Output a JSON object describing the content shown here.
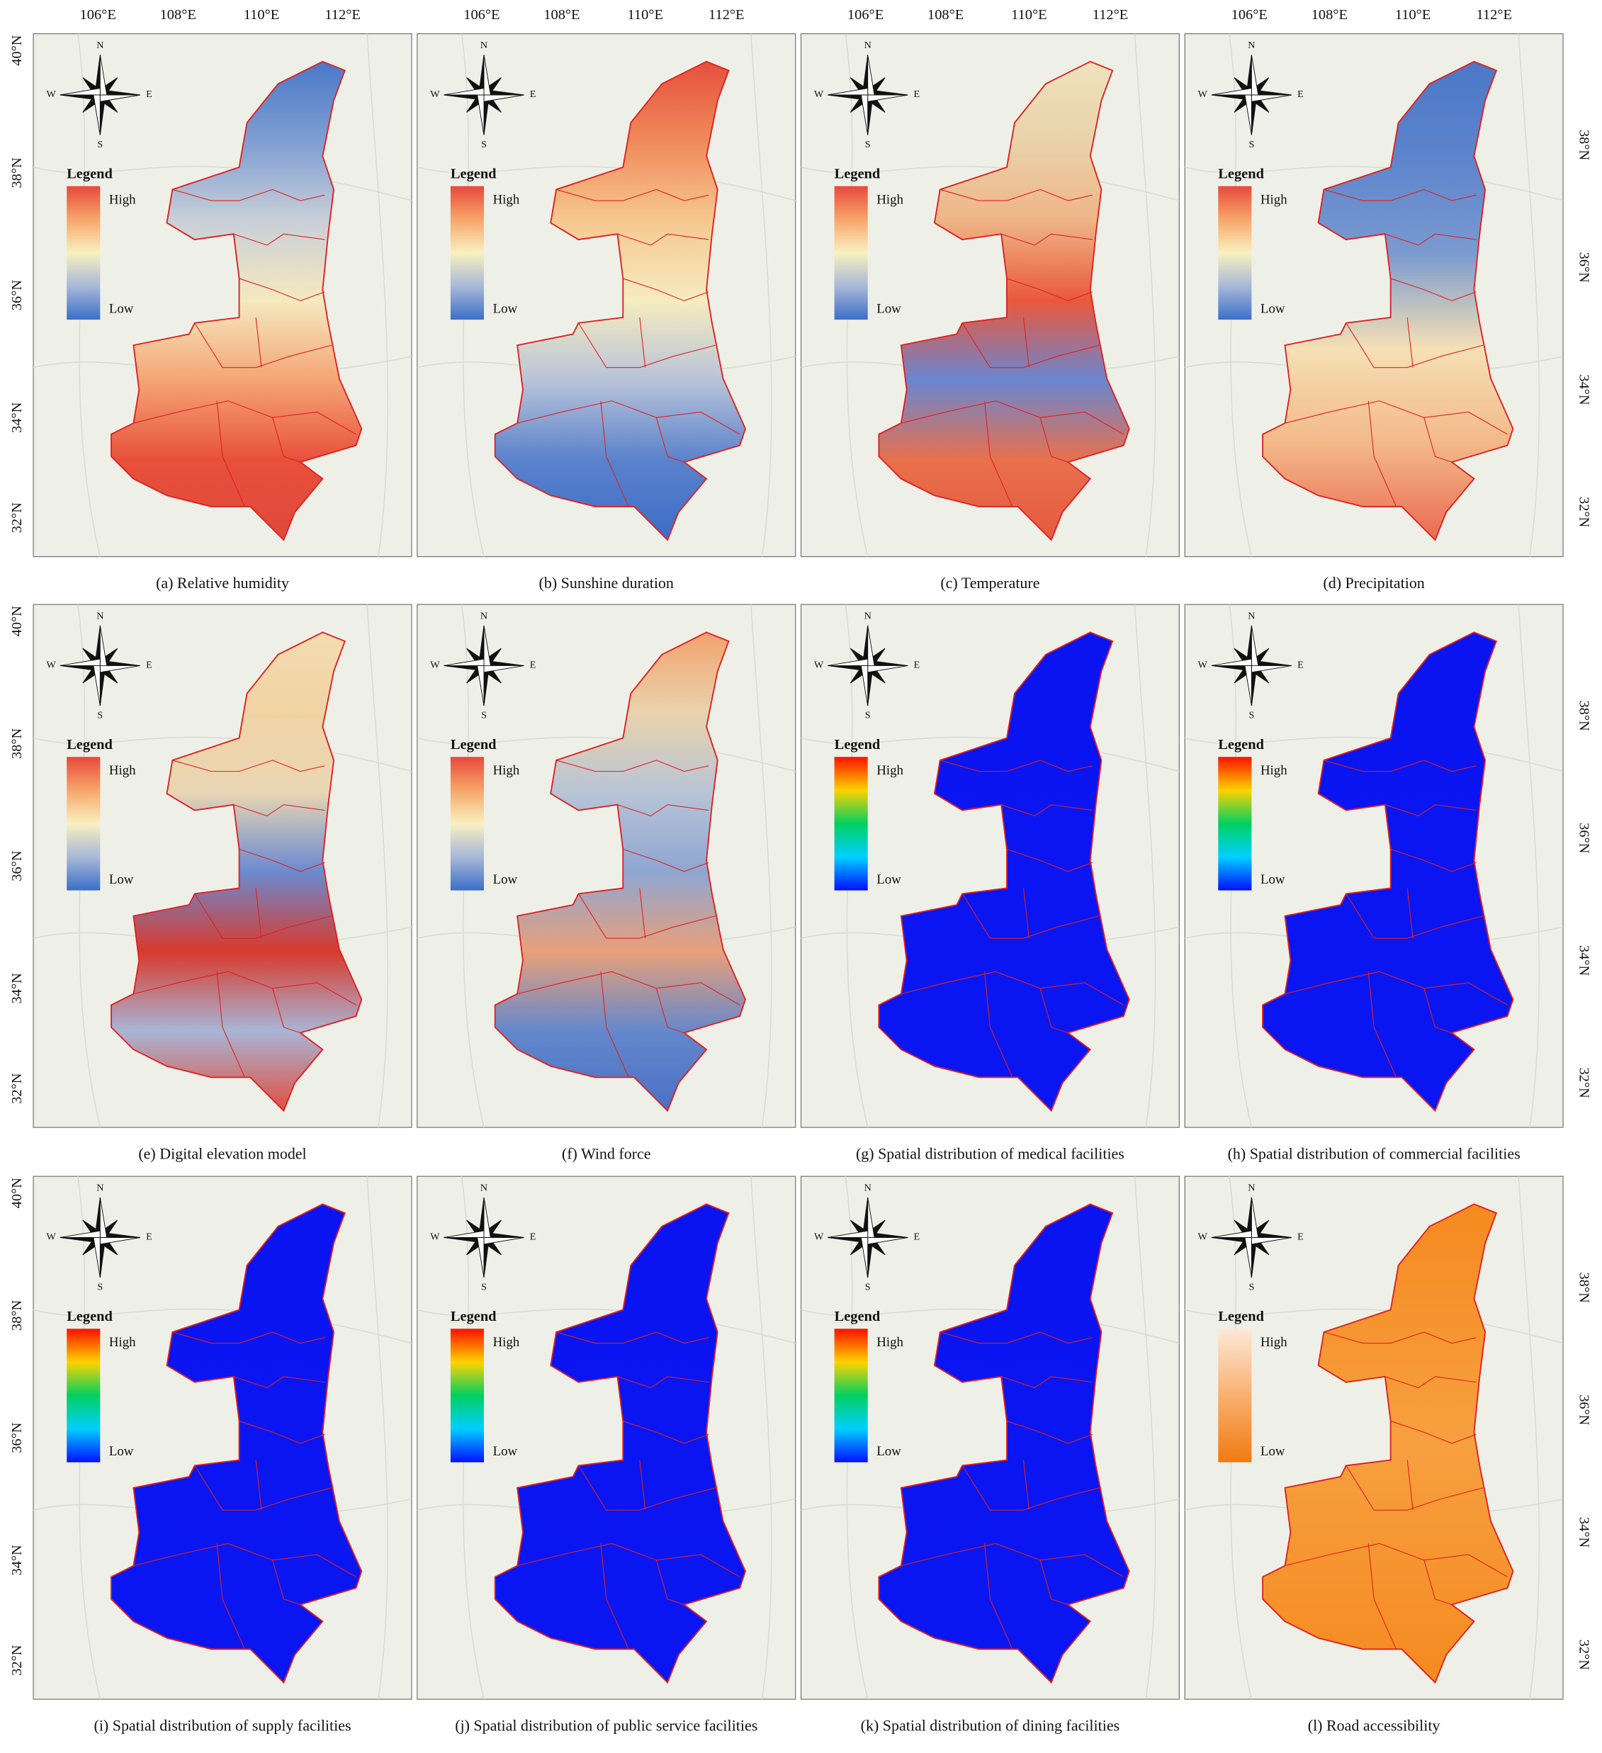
{
  "top_axis_labels": [
    "106°E",
    "108°E",
    "110°E",
    "112°E"
  ],
  "left_axis_labels": [
    "40°N",
    "38°N",
    "36°N",
    "34°N",
    "32°N"
  ],
  "right_axis_labels": [
    "38°N",
    "36°N",
    "34°N",
    "32°N"
  ],
  "compass": {
    "n": "N",
    "e": "E",
    "s": "S",
    "w": "W"
  },
  "legend": {
    "title": "Legend",
    "high": "High",
    "low": "Low"
  },
  "panels": [
    {
      "caption": "(a) Relative humidity",
      "legend_colors": [
        "#e8483b",
        "#f7a66a",
        "#f8f1bf",
        "#a8b8d8",
        "#3b6fc8"
      ],
      "map_colors": [
        "#4a78c8",
        "#7f9ed2",
        "#c8cfd8",
        "#f5e9be",
        "#f4a575",
        "#e8503c",
        "#e0483a"
      ]
    },
    {
      "caption": "(b) Sunshine duration",
      "legend_colors": [
        "#e8483b",
        "#f7a66a",
        "#f8f1bf",
        "#a8b8d8",
        "#3b6fc8"
      ],
      "map_colors": [
        "#e6503c",
        "#f08a5a",
        "#f6c890",
        "#f5ecc0",
        "#b8c3d8",
        "#5a82cc",
        "#3e6cc6"
      ]
    },
    {
      "caption": "(c) Temperature",
      "legend_colors": [
        "#e8483b",
        "#f7a66a",
        "#f8f1bf",
        "#a8b8d8",
        "#3b6fc8"
      ],
      "map_colors": [
        "#eee2bc",
        "#e9d2aa",
        "#efb486",
        "#e9583c",
        "#6a86d0",
        "#e8704c",
        "#e65a40"
      ]
    },
    {
      "caption": "(d) Precipitation",
      "legend_colors": [
        "#e8483b",
        "#f7a66a",
        "#f8f1bf",
        "#a8b8d8",
        "#3b6fc8"
      ],
      "map_colors": [
        "#4a78c8",
        "#5d84cc",
        "#7a9ad0",
        "#f5e0b5",
        "#f3b888",
        "#ea6a50"
      ]
    },
    {
      "caption": "(e) Digital elevation model",
      "legend_colors": [
        "#e8483b",
        "#f7a66a",
        "#f8f1bf",
        "#a8b8d8",
        "#3b6fc8"
      ],
      "map_colors": [
        "#f3dcae",
        "#f1d3a4",
        "#e9d6b4",
        "#6a8ad0",
        "#d83a2c",
        "#a8b5d5",
        "#e05040"
      ]
    },
    {
      "caption": "(f) Wind force",
      "legend_colors": [
        "#e8483b",
        "#f7a66a",
        "#f8f1bf",
        "#a8b8d8",
        "#3b6fc8"
      ],
      "map_colors": [
        "#f2a26e",
        "#e9d3ad",
        "#b8c4d6",
        "#8fa6d2",
        "#e8a07a",
        "#6488cc",
        "#4a70c4"
      ]
    },
    {
      "caption": "(g) Spatial distribution of medical facilities",
      "legend_colors": [
        "#ff1000",
        "#ffd200",
        "#00d060",
        "#00d0ff",
        "#0010ff"
      ],
      "map_colors": [
        "#0a14f0",
        "#0a16f2"
      ]
    },
    {
      "caption": "(h) Spatial distribution of commercial facilities",
      "legend_colors": [
        "#ff1000",
        "#ffd200",
        "#00d060",
        "#00d0ff",
        "#0010ff"
      ],
      "map_colors": [
        "#0a14f0",
        "#0a16f2"
      ]
    },
    {
      "caption": "(i) Spatial distribution of supply facilities",
      "legend_colors": [
        "#ff1000",
        "#ffd200",
        "#00d060",
        "#00d0ff",
        "#0010ff"
      ],
      "map_colors": [
        "#0a14f0",
        "#0a16f2"
      ]
    },
    {
      "caption": "(j) Spatial distribution of public service facilities",
      "legend_colors": [
        "#ff1000",
        "#ffd200",
        "#00d060",
        "#00d0ff",
        "#0010ff"
      ],
      "map_colors": [
        "#0a14f0",
        "#0a16f2"
      ]
    },
    {
      "caption": "(k) Spatial distribution of dining facilities",
      "legend_colors": [
        "#ff1000",
        "#ffd200",
        "#00d060",
        "#00d0ff",
        "#0010ff"
      ],
      "map_colors": [
        "#0a14f0",
        "#0a16f2"
      ]
    },
    {
      "caption": "(l) Road accessibility",
      "legend_colors": [
        "#fde8d8",
        "#f9b070",
        "#f07a10"
      ],
      "map_colors": [
        "#f58a20",
        "#f7a040",
        "#f58a20"
      ]
    }
  ]
}
